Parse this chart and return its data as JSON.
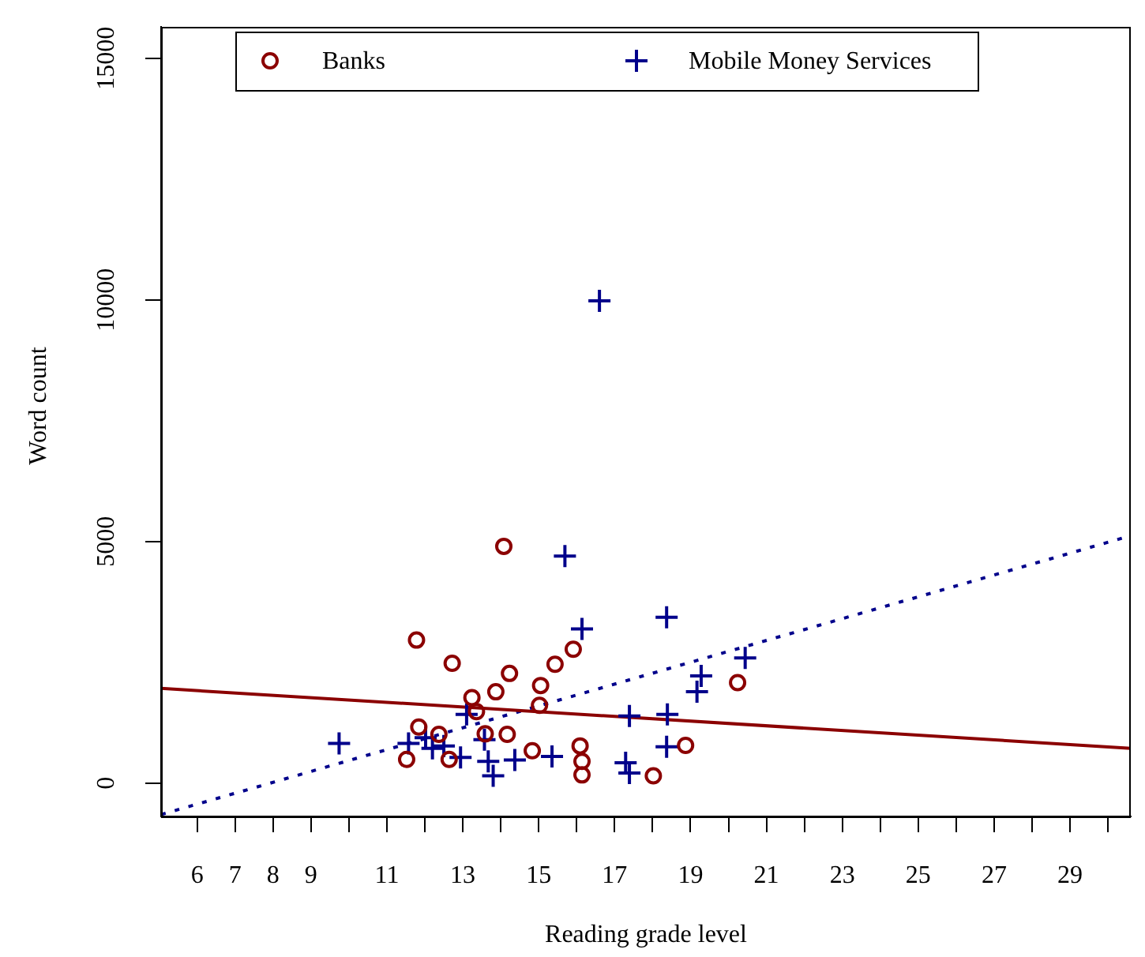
{
  "chart_data": {
    "type": "scatter",
    "xlabel": "Reading grade level",
    "ylabel": "Word count",
    "xlim": [
      5.05,
      30.6
    ],
    "ylim": [
      -690,
      15650
    ],
    "xticks": [
      6,
      7,
      8,
      9,
      {
        "value": 10,
        "label": null
      },
      11,
      {
        "value": 12,
        "label": null
      },
      13,
      {
        "value": 14,
        "label": null
      },
      15,
      {
        "value": 16,
        "label": null
      },
      17,
      {
        "value": 18,
        "label": null
      },
      19,
      {
        "value": 20,
        "label": null
      },
      21,
      {
        "value": 22,
        "label": null
      },
      23,
      {
        "value": 24,
        "label": null
      },
      25,
      {
        "value": 26,
        "label": null
      },
      27,
      {
        "value": 28,
        "label": null
      },
      29,
      {
        "value": 30,
        "label": null
      }
    ],
    "yticks": [
      0,
      5000,
      10000,
      15000
    ],
    "grid": false,
    "legend": "top",
    "series": [
      {
        "name": "Banks",
        "marker": "circle",
        "color": "#8b0000",
        "x": [
          14.08,
          11.78,
          12.72,
          14.23,
          13.87,
          13.24,
          13.36,
          15.05,
          15.43,
          15.91,
          15.02,
          11.84,
          12.37,
          13.59,
          14.17,
          14.83,
          11.52,
          12.64,
          16.09,
          16.14,
          16.14,
          20.24,
          18.87,
          18.02
        ],
        "values": [
          4900,
          2960,
          2480,
          2270,
          1890,
          1770,
          1480,
          2020,
          2460,
          2770,
          1610,
          1160,
          1010,
          1020,
          1010,
          670,
          490,
          490,
          770,
          450,
          170,
          2080,
          780,
          150
        ]
      },
      {
        "name": "Mobile Money Services",
        "marker": "cross",
        "color": "#00008b",
        "x": [
          16.6,
          15.69,
          16.14,
          18.37,
          20.44,
          19.28,
          19.17,
          18.39,
          17.39,
          18.37,
          17.29,
          17.39,
          13.1,
          9.74,
          11.57,
          12.02,
          12.2,
          12.5,
          12.94,
          13.57,
          13.67,
          13.8,
          14.37,
          15.35
        ],
        "values": [
          9980,
          4700,
          3190,
          3430,
          2590,
          2220,
          1890,
          1420,
          1390,
          750,
          420,
          210,
          1420,
          820,
          820,
          940,
          720,
          770,
          530,
          900,
          450,
          150,
          480,
          550
        ]
      },
      {
        "type": "line",
        "marker": "none",
        "line_style": "solid",
        "color": "#8b0000",
        "x": [
          5.05,
          30.6
        ],
        "values": [
          1960,
          720
        ]
      },
      {
        "type": "line",
        "marker": "none",
        "line_style": "dotted",
        "color": "#00008b",
        "x": [
          5.05,
          30.6
        ],
        "values": [
          -650,
          5120
        ]
      }
    ]
  }
}
